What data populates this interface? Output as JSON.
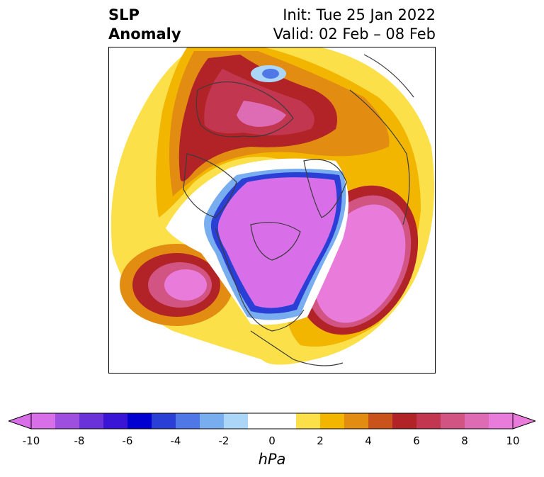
{
  "title": {
    "left_line1": "SLP",
    "left_line2": "Anomaly",
    "right_line1": "Init: Tue 25 Jan 2022",
    "right_line2": "Valid: 02 Feb – 08 Feb"
  },
  "colorbar": {
    "unit": "hPa",
    "ticks": [
      "-10",
      "-8",
      "-6",
      "-4",
      "-2",
      "0",
      "2",
      "4",
      "6",
      "8",
      "10"
    ],
    "colors": [
      "#d86ee8",
      "#9e4fe0",
      "#6a32d8",
      "#3a15d6",
      "#0000d0",
      "#2a3fd6",
      "#4f78e6",
      "#78aeef",
      "#acd6f7",
      "#ffffff",
      "#ffffff",
      "#fbe04a",
      "#f2b600",
      "#e38c12",
      "#c9531a",
      "#b22328",
      "#c23650",
      "#d15483",
      "#dd6cb5",
      "#e97bdb"
    ]
  }
}
